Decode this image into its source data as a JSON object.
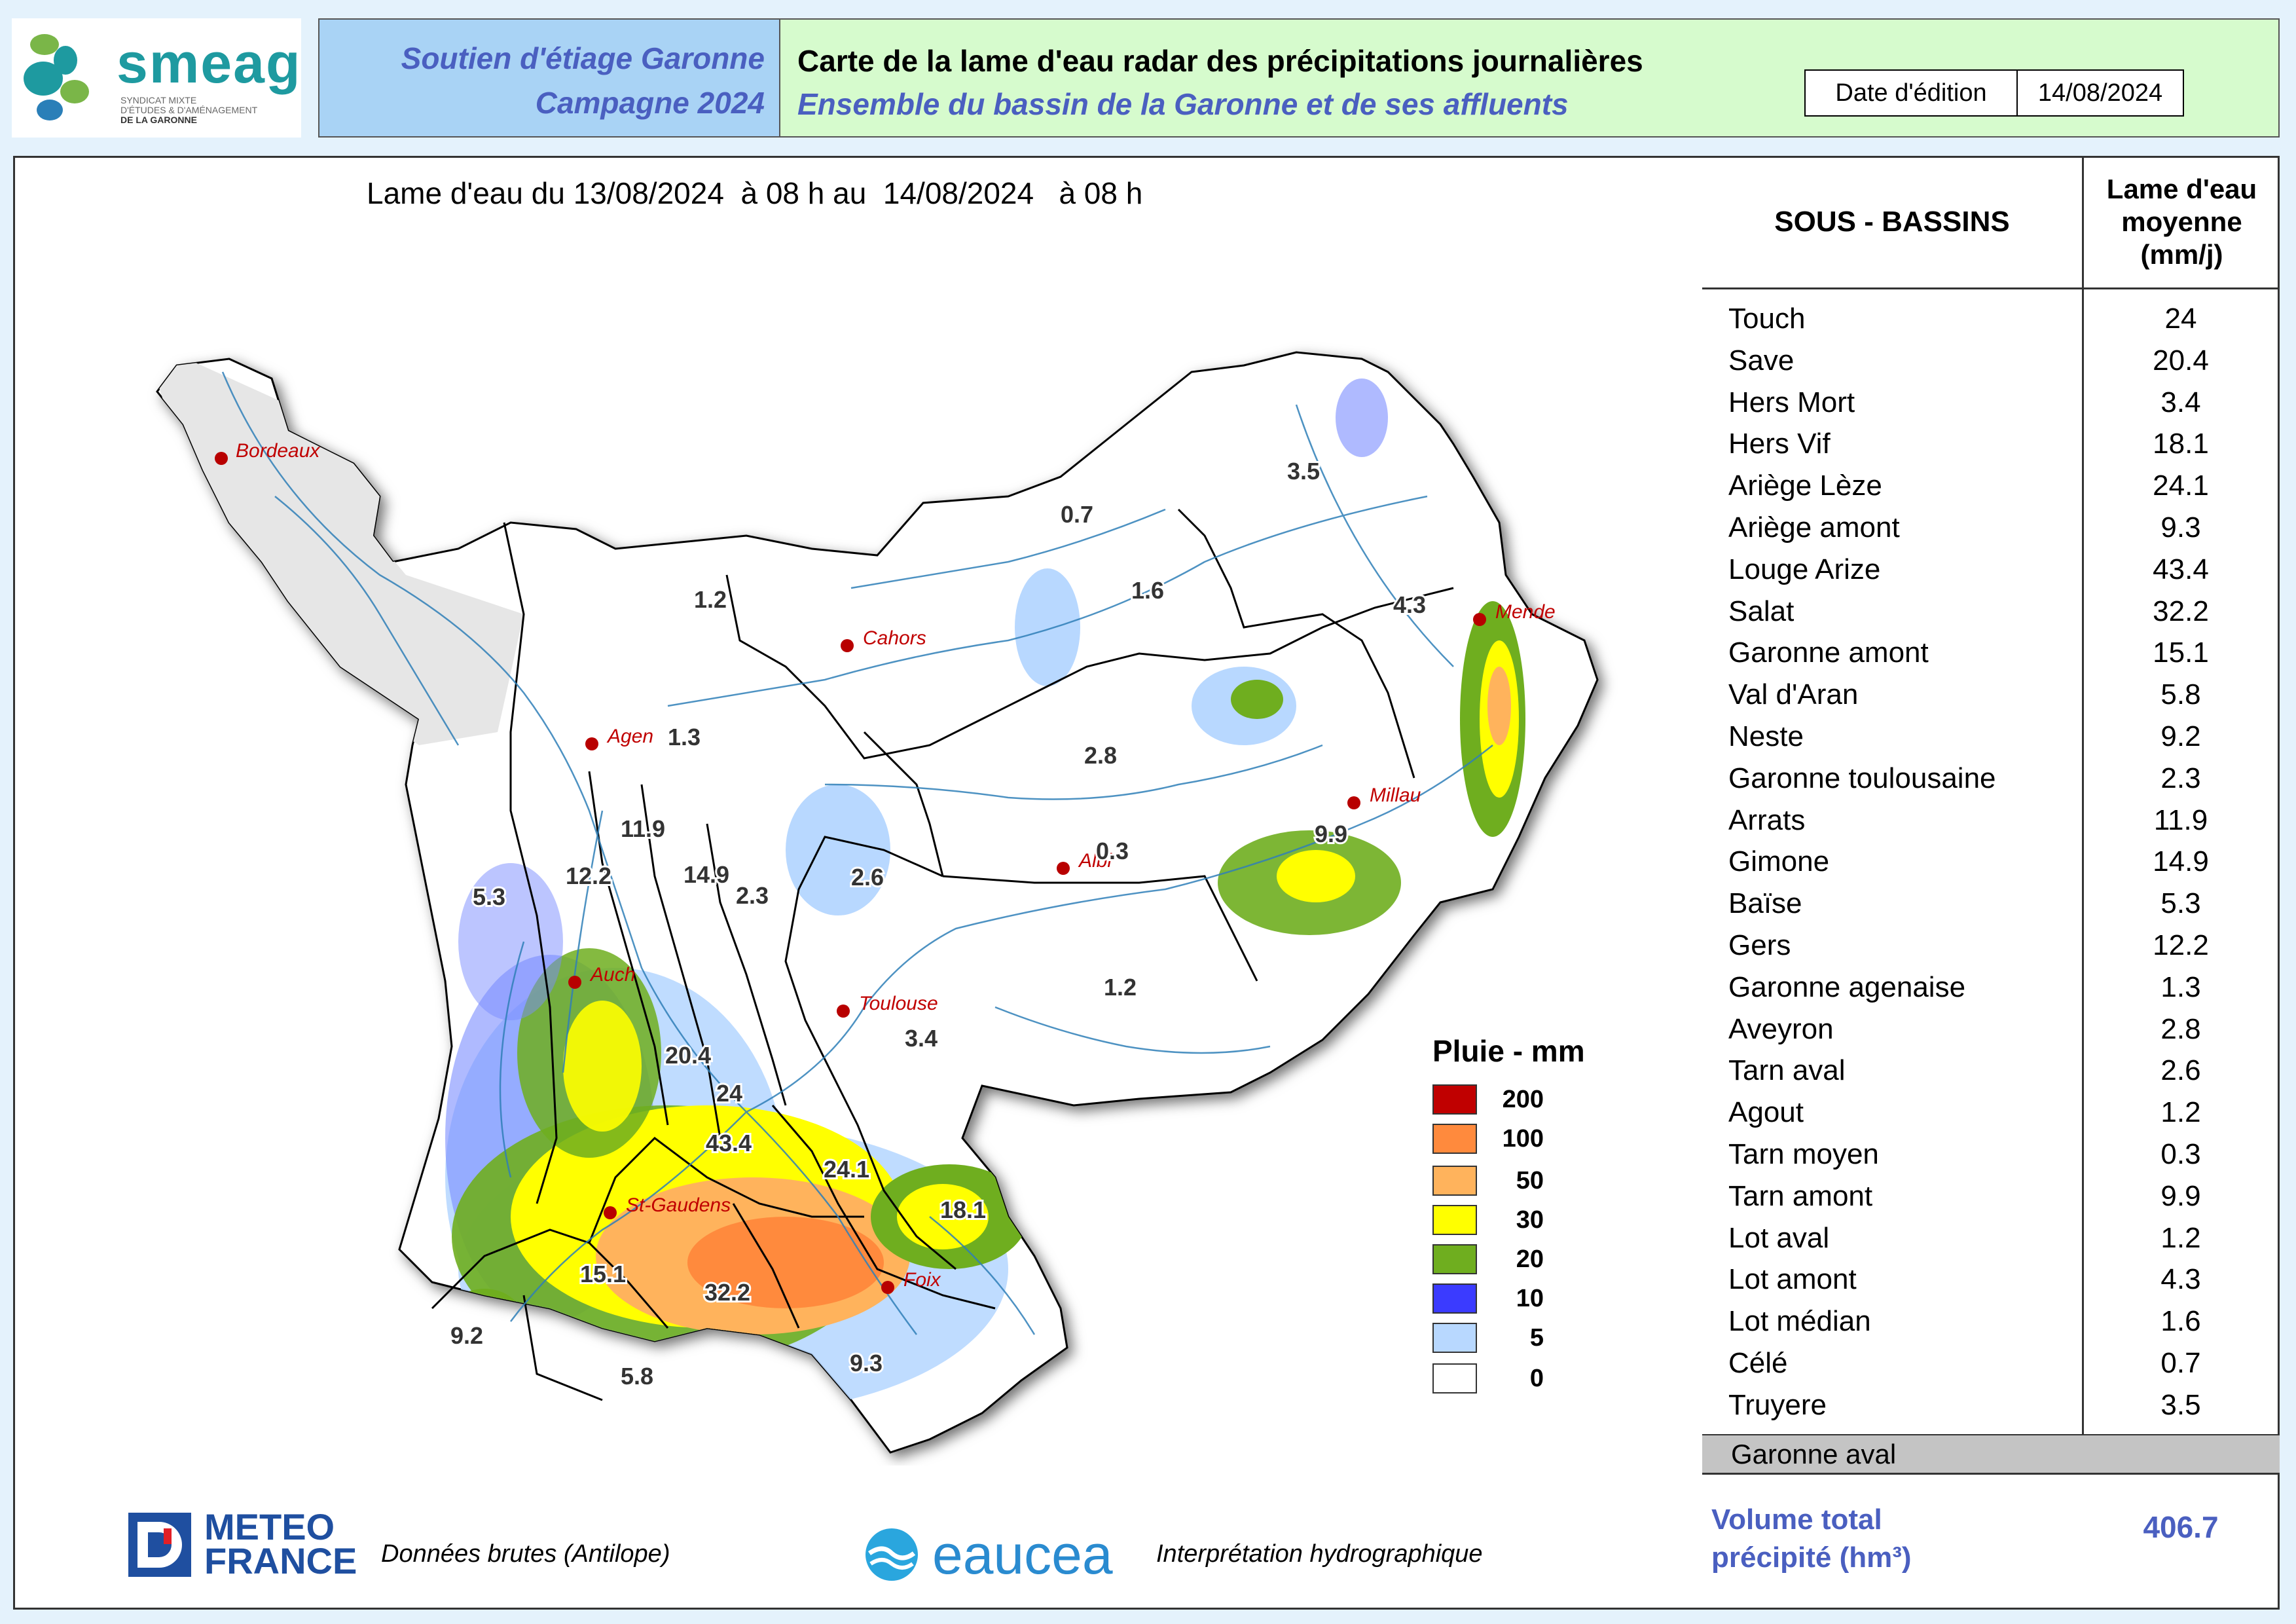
{
  "header": {
    "logo_text": "smeag",
    "logo_sub": [
      "SYNDICAT MIXTE",
      "D'ÉTUDES & D'AMÉNAGEMENT",
      "DE LA GARONNE"
    ],
    "program_line1": "Soutien d'étiage Garonne",
    "program_line2": "Campagne 2024",
    "title": "Carte de la lame d'eau radar des précipitations journalières",
    "subtitle": "Ensemble du bassin de la Garonne et de ses affluents",
    "date_label": "Date d'édition",
    "date_value": "14/08/2024"
  },
  "map": {
    "title": "Lame d'eau du 13/08/2024  à 08 h au  14/08/2024   à 08 h",
    "cities": [
      "Bordeaux",
      "Cahors",
      "Mende",
      "Agen",
      "Millau",
      "Albi",
      "Auch",
      "Toulouse",
      "St-Gaudens",
      "Foix"
    ],
    "basin_values": [
      "3.5",
      "0.7",
      "1.2",
      "1.6",
      "4.3",
      "1.3",
      "2.8",
      "11.9",
      "9.9",
      "0.3",
      "12.2",
      "14.9",
      "2.3",
      "2.6",
      "5.3",
      "1.2",
      "3.4",
      "20.4",
      "24",
      "43.4",
      "24.1",
      "18.1",
      "15.1",
      "32.2",
      "9.2",
      "5.8",
      "9.3"
    ]
  },
  "legend": {
    "title": "Pluie - mm",
    "items": [
      {
        "label": "200",
        "color": "#c00000"
      },
      {
        "label": "100",
        "color": "#ff8a3d"
      },
      {
        "label": "50",
        "color": "#ffb35c"
      },
      {
        "label": "30",
        "color": "#ffff00"
      },
      {
        "label": "20",
        "color": "#6fae1f"
      },
      {
        "label": "10",
        "color": "#3b3bff"
      },
      {
        "label": "5",
        "color": "#b8d8ff"
      },
      {
        "label": "0",
        "color": "#ffffff"
      }
    ]
  },
  "table": {
    "col1": "SOUS - BASSINS",
    "col2": "Lame d'eau\nmoyenne\n(mm/j)",
    "rows": [
      {
        "name": "Touch",
        "value": "24"
      },
      {
        "name": "Save",
        "value": "20.4"
      },
      {
        "name": "Hers Mort",
        "value": "3.4"
      },
      {
        "name": "Hers Vif",
        "value": "18.1"
      },
      {
        "name": "Ariège Lèze",
        "value": "24.1"
      },
      {
        "name": "Ariège amont",
        "value": "9.3"
      },
      {
        "name": "Louge Arize",
        "value": "43.4"
      },
      {
        "name": "Salat",
        "value": "32.2"
      },
      {
        "name": "Garonne amont",
        "value": "15.1"
      },
      {
        "name": "Val d'Aran",
        "value": "5.8"
      },
      {
        "name": "Neste",
        "value": "9.2"
      },
      {
        "name": "Garonne toulousaine",
        "value": "2.3"
      },
      {
        "name": "Arrats",
        "value": "11.9"
      },
      {
        "name": "Gimone",
        "value": "14.9"
      },
      {
        "name": "Baïse",
        "value": "5.3"
      },
      {
        "name": "Gers",
        "value": "12.2"
      },
      {
        "name": "Garonne agenaise",
        "value": "1.3"
      },
      {
        "name": "Aveyron",
        "value": "2.8"
      },
      {
        "name": "Tarn aval",
        "value": "2.6"
      },
      {
        "name": "Agout",
        "value": "1.2"
      },
      {
        "name": "Tarn moyen",
        "value": "0.3"
      },
      {
        "name": "Tarn amont",
        "value": "9.9"
      },
      {
        "name": "Lot aval",
        "value": "1.2"
      },
      {
        "name": "Lot amont",
        "value": "4.3"
      },
      {
        "name": "Lot médian",
        "value": "1.6"
      },
      {
        "name": "Célé",
        "value": "0.7"
      },
      {
        "name": "Truyere",
        "value": "3.5"
      }
    ],
    "aval_label": "Garonne aval",
    "volume_label": "Volume total\nprécipité (hm³)",
    "volume_value": "406.7"
  },
  "footer": {
    "meteo_line1": "METEO",
    "meteo_line2": "FRANCE",
    "meteo_caption": "Données brutes (Antilope)",
    "eaucea_name": "eaucea",
    "eaucea_caption": "Interprétation hydrographique"
  }
}
